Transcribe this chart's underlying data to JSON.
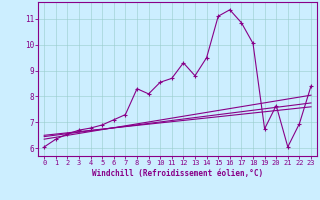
{
  "title": "",
  "xlabel": "Windchill (Refroidissement éolien,°C)",
  "ylabel": "",
  "bg_color": "#cceeff",
  "line_color": "#880088",
  "xlim": [
    -0.5,
    23.5
  ],
  "ylim": [
    5.7,
    11.65
  ],
  "xticks": [
    0,
    1,
    2,
    3,
    4,
    5,
    6,
    7,
    8,
    9,
    10,
    11,
    12,
    13,
    14,
    15,
    16,
    17,
    18,
    19,
    20,
    21,
    22,
    23
  ],
  "yticks": [
    6,
    7,
    8,
    9,
    10,
    11
  ],
  "main_series": [
    [
      0,
      6.05
    ],
    [
      1,
      6.35
    ],
    [
      2,
      6.55
    ],
    [
      3,
      6.7
    ],
    [
      4,
      6.78
    ],
    [
      5,
      6.9
    ],
    [
      6,
      7.1
    ],
    [
      7,
      7.3
    ],
    [
      8,
      8.3
    ],
    [
      9,
      8.1
    ],
    [
      10,
      8.55
    ],
    [
      11,
      8.7
    ],
    [
      12,
      9.3
    ],
    [
      13,
      8.8
    ],
    [
      14,
      9.5
    ],
    [
      15,
      11.1
    ],
    [
      16,
      11.35
    ],
    [
      17,
      10.85
    ],
    [
      18,
      10.05
    ],
    [
      19,
      6.75
    ],
    [
      20,
      7.65
    ],
    [
      21,
      6.05
    ],
    [
      22,
      6.95
    ],
    [
      23,
      8.4
    ]
  ],
  "line1": [
    [
      0,
      6.45
    ],
    [
      23,
      7.75
    ]
  ],
  "line2": [
    [
      0,
      6.35
    ],
    [
      23,
      8.05
    ]
  ],
  "line3": [
    [
      0,
      6.5
    ],
    [
      23,
      7.6
    ]
  ]
}
